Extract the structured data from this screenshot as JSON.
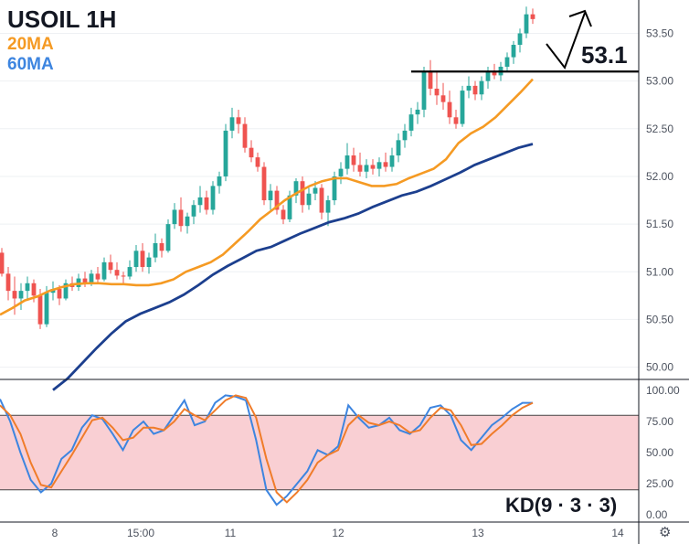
{
  "header": {
    "title": "USOIL 1H",
    "ma20_label": "20MA",
    "ma60_label": "60MA"
  },
  "colors": {
    "up": "#26a69a",
    "down": "#ef5350",
    "ma20": "#f59a23",
    "ma60": "#1c3f8e",
    "k_line": "#3d85e0",
    "d_line": "#f07c2a",
    "band": "#f9cfd3",
    "grid": "#000000"
  },
  "chart_data": [
    {
      "type": "candlestick",
      "title": "USOIL 1H",
      "ylim": [
        49.9,
        53.85
      ],
      "y_ticks": [
        "53.50",
        "53.00",
        "52.50",
        "52.00",
        "51.50",
        "51.00",
        "50.50",
        "50.00"
      ],
      "x_ticks": [
        "8",
        "15:00",
        "11",
        "12",
        "13",
        "14"
      ],
      "candles": [
        [
          51.2,
          51.25,
          50.95,
          50.98
        ],
        [
          50.98,
          51.05,
          50.7,
          50.8
        ],
        [
          50.8,
          50.95,
          50.55,
          50.72
        ],
        [
          50.72,
          50.88,
          50.6,
          50.8
        ],
        [
          50.8,
          50.95,
          50.72,
          50.88
        ],
        [
          50.88,
          50.92,
          50.68,
          50.75
        ],
        [
          50.75,
          50.82,
          50.4,
          50.45
        ],
        [
          50.45,
          50.85,
          50.42,
          50.78
        ],
        [
          50.78,
          50.9,
          50.7,
          50.82
        ],
        [
          50.82,
          50.86,
          50.65,
          50.72
        ],
        [
          50.72,
          50.92,
          50.7,
          50.88
        ],
        [
          50.88,
          50.95,
          50.8,
          50.84
        ],
        [
          50.84,
          50.98,
          50.8,
          50.93
        ],
        [
          50.93,
          51.0,
          50.84,
          50.88
        ],
        [
          50.88,
          51.02,
          50.85,
          50.98
        ],
        [
          50.98,
          51.05,
          50.88,
          50.92
        ],
        [
          50.92,
          51.15,
          50.9,
          51.1
        ],
        [
          51.1,
          51.18,
          50.98,
          51.02
        ],
        [
          51.02,
          51.1,
          50.92,
          50.96
        ],
        [
          50.96,
          51.0,
          50.88,
          50.95
        ],
        [
          50.95,
          51.12,
          50.92,
          51.05
        ],
        [
          51.05,
          51.28,
          51.0,
          51.22
        ],
        [
          51.22,
          51.3,
          51.0,
          51.05
        ],
        [
          51.05,
          51.2,
          50.98,
          51.15
        ],
        [
          51.15,
          51.4,
          51.1,
          51.3
        ],
        [
          51.3,
          51.35,
          51.15,
          51.22
        ],
        [
          51.22,
          51.55,
          51.2,
          51.5
        ],
        [
          51.5,
          51.72,
          51.45,
          51.65
        ],
        [
          51.65,
          51.78,
          51.42,
          51.48
        ],
        [
          51.48,
          51.62,
          51.4,
          51.58
        ],
        [
          51.58,
          51.75,
          51.5,
          51.7
        ],
        [
          51.7,
          51.9,
          51.62,
          51.78
        ],
        [
          51.78,
          51.85,
          51.6,
          51.65
        ],
        [
          51.65,
          51.95,
          51.6,
          51.9
        ],
        [
          51.9,
          52.05,
          51.82,
          52.0
        ],
        [
          52.0,
          52.55,
          51.95,
          52.48
        ],
        [
          52.48,
          52.72,
          52.4,
          52.62
        ],
        [
          52.62,
          52.7,
          52.45,
          52.55
        ],
        [
          52.55,
          52.62,
          52.25,
          52.3
        ],
        [
          52.3,
          52.38,
          52.15,
          52.2
        ],
        [
          52.2,
          52.25,
          52.05,
          52.1
        ],
        [
          52.1,
          52.15,
          51.7,
          51.75
        ],
        [
          51.75,
          51.92,
          51.65,
          51.85
        ],
        [
          51.85,
          51.9,
          51.6,
          51.65
        ],
        [
          51.65,
          51.7,
          51.5,
          51.55
        ],
        [
          51.55,
          51.85,
          51.52,
          51.8
        ],
        [
          51.8,
          51.98,
          51.72,
          51.95
        ],
        [
          51.95,
          52.0,
          51.62,
          51.7
        ],
        [
          51.7,
          51.88,
          51.65,
          51.82
        ],
        [
          51.82,
          51.95,
          51.75,
          51.88
        ],
        [
          51.88,
          51.92,
          51.55,
          51.62
        ],
        [
          51.62,
          51.8,
          51.48,
          51.75
        ],
        [
          51.75,
          52.05,
          51.7,
          52.0
        ],
        [
          52.0,
          52.15,
          51.92,
          52.08
        ],
        [
          52.08,
          52.35,
          52.02,
          52.22
        ],
        [
          52.22,
          52.3,
          52.05,
          52.12
        ],
        [
          52.12,
          52.25,
          52.0,
          52.05
        ],
        [
          52.05,
          52.18,
          51.98,
          52.12
        ],
        [
          52.12,
          52.18,
          52.02,
          52.08
        ],
        [
          52.08,
          52.2,
          52.0,
          52.15
        ],
        [
          52.15,
          52.25,
          52.05,
          52.1
        ],
        [
          52.1,
          52.3,
          52.05,
          52.22
        ],
        [
          52.22,
          52.45,
          52.15,
          52.38
        ],
        [
          52.38,
          52.55,
          52.3,
          52.48
        ],
        [
          52.48,
          52.72,
          52.42,
          52.65
        ],
        [
          52.65,
          52.78,
          52.55,
          52.7
        ],
        [
          52.7,
          53.15,
          52.62,
          53.1
        ],
        [
          53.1,
          53.22,
          52.85,
          52.92
        ],
        [
          52.92,
          53.1,
          52.75,
          52.85
        ],
        [
          52.85,
          52.98,
          52.7,
          52.78
        ],
        [
          52.78,
          52.9,
          52.55,
          52.62
        ],
        [
          52.62,
          52.7,
          52.5,
          52.55
        ],
        [
          52.55,
          52.95,
          52.52,
          52.9
        ],
        [
          52.9,
          53.05,
          52.82,
          52.95
        ],
        [
          52.95,
          53.0,
          52.8,
          52.86
        ],
        [
          52.86,
          53.05,
          52.8,
          53.0
        ],
        [
          53.0,
          53.15,
          52.92,
          53.1
        ],
        [
          53.1,
          53.18,
          53.02,
          53.06
        ],
        [
          53.06,
          53.2,
          53.0,
          53.15
        ],
        [
          53.15,
          53.3,
          53.1,
          53.25
        ],
        [
          53.25,
          53.42,
          53.18,
          53.38
        ],
        [
          53.38,
          53.55,
          53.3,
          53.5
        ],
        [
          53.5,
          53.78,
          53.45,
          53.7
        ],
        [
          53.7,
          53.76,
          53.6,
          53.65
        ]
      ],
      "ma20": [
        50.55,
        50.62,
        50.7,
        50.74,
        50.8,
        50.84,
        50.87,
        50.88,
        50.88,
        50.87,
        50.87,
        50.86,
        50.86,
        50.88,
        50.92,
        51.0,
        51.05,
        51.1,
        51.18,
        51.3,
        51.42,
        51.55,
        51.65,
        51.75,
        51.83,
        51.9,
        51.95,
        51.98,
        51.98,
        51.94,
        51.9,
        51.9,
        51.92,
        51.98,
        52.03,
        52.08,
        52.18,
        52.35,
        52.45,
        52.52,
        52.62,
        52.75,
        52.88,
        53.02
      ],
      "ma60": [
        49.76,
        49.88,
        50.04,
        50.2,
        50.35,
        50.48,
        50.56,
        50.62,
        50.68,
        50.76,
        50.86,
        50.97,
        51.06,
        51.14,
        51.22,
        51.26,
        51.33,
        51.4,
        51.46,
        51.52,
        51.56,
        51.61,
        51.68,
        51.74,
        51.8,
        51.84,
        51.9,
        51.97,
        52.04,
        52.12,
        52.18,
        52.24,
        52.3,
        52.34
      ],
      "resistance_level": 53.1,
      "resistance_label": "53.1"
    },
    {
      "type": "line",
      "title": "KD(9 · 3 · 3)",
      "ylim": [
        0,
        100
      ],
      "y_ticks": [
        "100.00",
        "75.00",
        "50.00",
        "25.00",
        "0.00"
      ],
      "band": [
        20,
        80
      ],
      "series": [
        {
          "name": "K",
          "values": [
            93,
            75,
            50,
            28,
            18,
            25,
            45,
            52,
            70,
            80,
            77,
            65,
            52,
            68,
            75,
            65,
            68,
            80,
            92,
            72,
            75,
            90,
            96,
            95,
            92,
            60,
            20,
            8,
            15,
            25,
            35,
            52,
            48,
            55,
            88,
            78,
            70,
            72,
            78,
            68,
            65,
            72,
            86,
            88,
            80,
            60,
            52,
            62,
            72,
            78,
            85,
            90,
            90
          ]
        },
        {
          "name": "D",
          "values": [
            88,
            80,
            65,
            42,
            24,
            22,
            35,
            48,
            62,
            76,
            78,
            70,
            60,
            62,
            70,
            70,
            68,
            75,
            85,
            80,
            76,
            84,
            92,
            96,
            94,
            78,
            45,
            18,
            10,
            18,
            28,
            42,
            48,
            52,
            72,
            80,
            74,
            72,
            75,
            72,
            66,
            68,
            78,
            86,
            84,
            72,
            56,
            57,
            65,
            72,
            80,
            86,
            90
          ]
        }
      ],
      "label": "KD(9 · 3 · 3)"
    }
  ]
}
